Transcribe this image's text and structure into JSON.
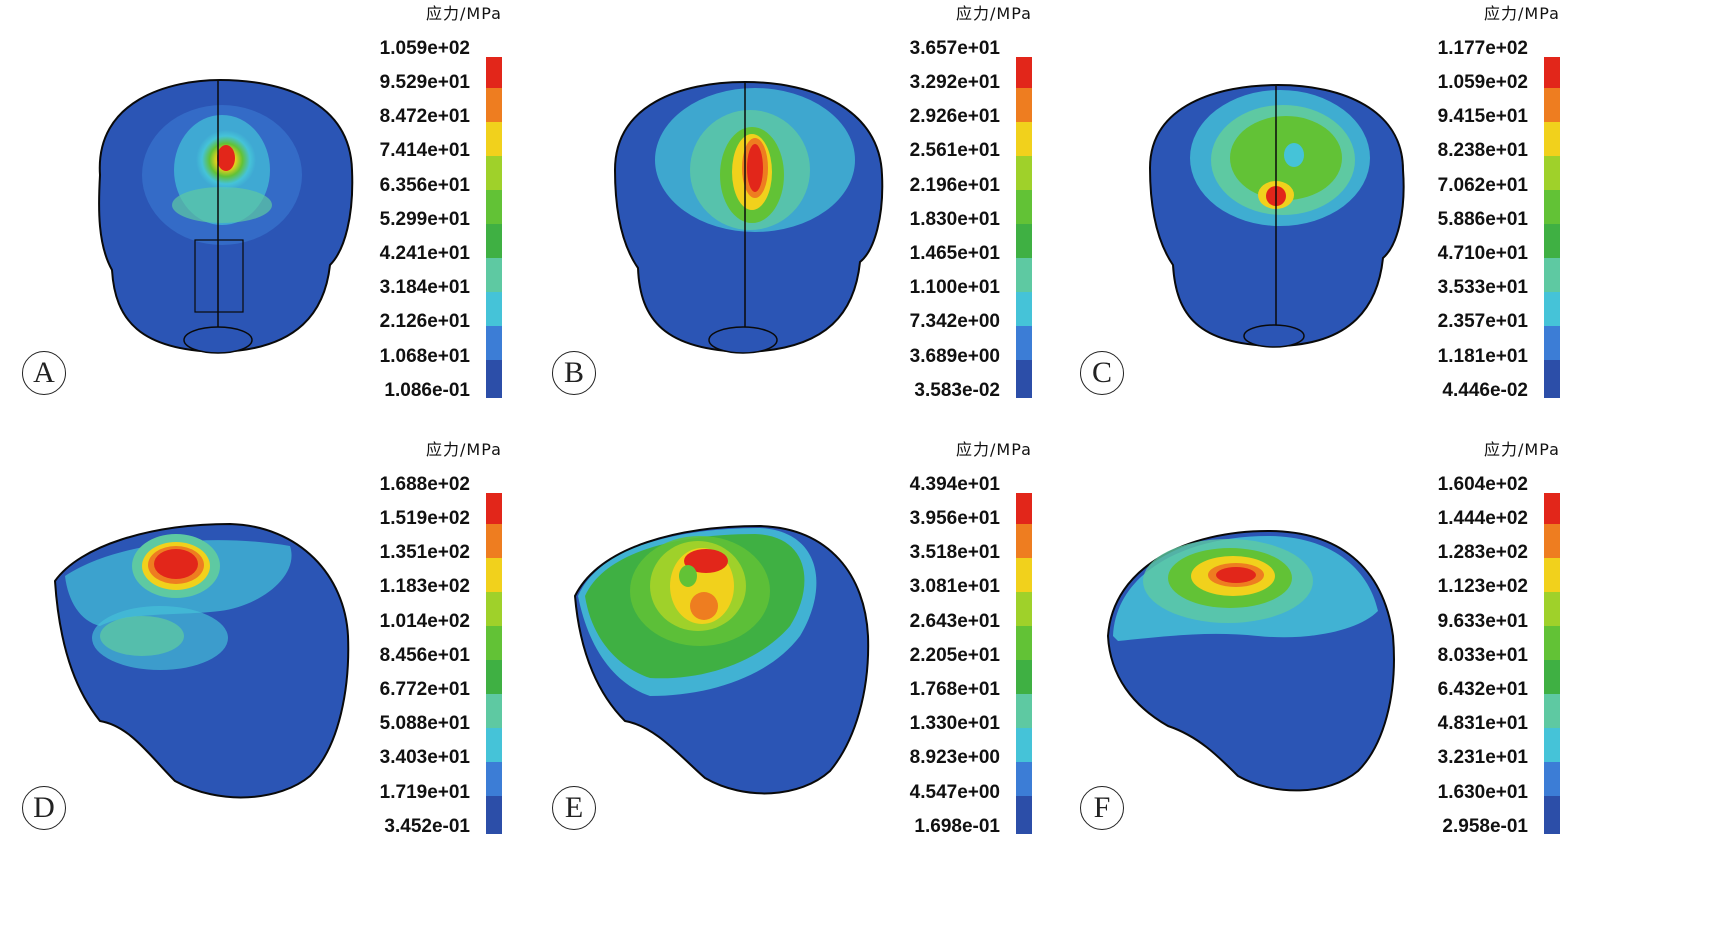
{
  "colors": {
    "legend_bands_bottom_to_top": [
      "#2c4ea8",
      "#3c7dd6",
      "#45c3d8",
      "#5ec9a2",
      "#3fb043",
      "#62c236",
      "#9fd12a",
      "#f1d11c",
      "#ee7d20",
      "#e2261a"
    ],
    "skull_base": "#2b55b5",
    "outline": "#0a0a0a"
  },
  "panels": [
    {
      "id": "A",
      "label": "A",
      "legend_title": "应力/MPa",
      "legend_ticks": [
        "1.059e+02",
        "9.529e+01",
        "8.472e+01",
        "7.414e+01",
        "6.356e+01",
        "5.299e+01",
        "4.241e+01",
        "3.184e+01",
        "2.126e+01",
        "1.068e+01",
        "1.086e-01"
      ]
    },
    {
      "id": "B",
      "label": "B",
      "legend_title": "应力/MPa",
      "legend_ticks": [
        "3.657e+01",
        "3.292e+01",
        "2.926e+01",
        "2.561e+01",
        "2.196e+01",
        "1.830e+01",
        "1.465e+01",
        "1.100e+01",
        "7.342e+00",
        "3.689e+00",
        "3.583e-02"
      ]
    },
    {
      "id": "C",
      "label": "C",
      "legend_title": "应力/MPa",
      "legend_ticks": [
        "1.177e+02",
        "1.059e+02",
        "9.415e+01",
        "8.238e+01",
        "7.062e+01",
        "5.886e+01",
        "4.710e+01",
        "3.533e+01",
        "2.357e+01",
        "1.181e+01",
        "4.446e-02"
      ]
    },
    {
      "id": "D",
      "label": "D",
      "legend_title": "应力/MPa",
      "legend_ticks": [
        "1.688e+02",
        "1.519e+02",
        "1.351e+02",
        "1.183e+02",
        "1.014e+02",
        "8.456e+01",
        "6.772e+01",
        "5.088e+01",
        "3.403e+01",
        "1.719e+01",
        "3.452e-01"
      ]
    },
    {
      "id": "E",
      "label": "E",
      "legend_title": "应力/MPa",
      "legend_ticks": [
        "4.394e+01",
        "3.956e+01",
        "3.518e+01",
        "3.081e+01",
        "2.643e+01",
        "2.205e+01",
        "1.768e+01",
        "1.330e+01",
        "8.923e+00",
        "4.547e+00",
        "1.698e-01"
      ]
    },
    {
      "id": "F",
      "label": "F",
      "legend_title": "应力/MPa",
      "legend_ticks": [
        "1.604e+02",
        "1.444e+02",
        "1.283e+02",
        "1.123e+02",
        "9.633e+01",
        "8.033e+01",
        "6.432e+01",
        "4.831e+01",
        "3.231e+01",
        "1.630e+01",
        "2.958e-01"
      ]
    }
  ]
}
